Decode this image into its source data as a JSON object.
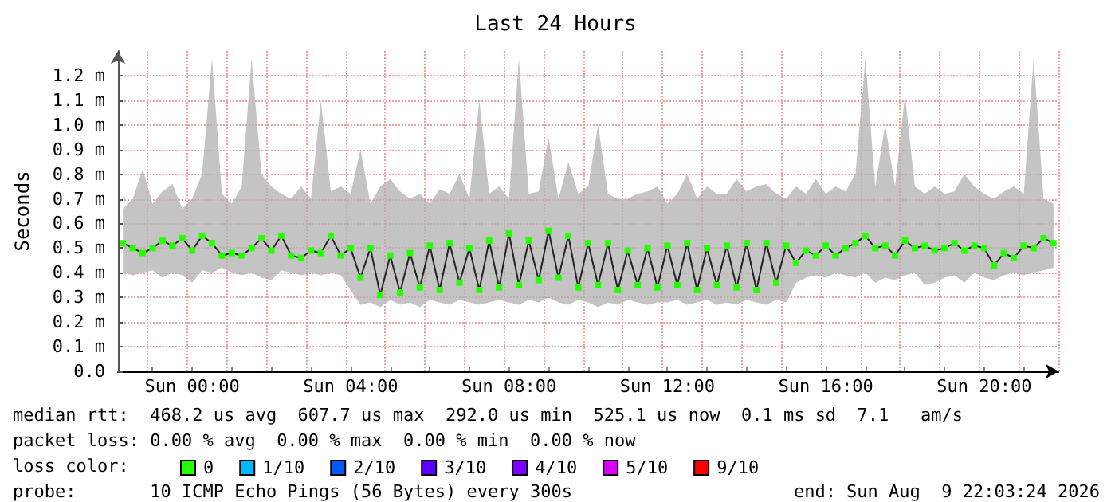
{
  "chart_data": {
    "type": "line",
    "title": "Last 24 Hours",
    "ylabel": "Seconds",
    "legend_title": "loss color:",
    "grid": true,
    "legend": "bottom left",
    "marker": "square",
    "categories": [
      null,
      null,
      null,
      null,
      null,
      null,
      null,
      "Sun 00:00",
      null,
      null,
      null,
      null,
      null,
      null,
      null,
      null,
      null,
      null,
      null,
      null,
      null,
      null,
      null,
      "Sun 04:00",
      null,
      null,
      null,
      null,
      null,
      null,
      null,
      null,
      null,
      null,
      null,
      null,
      null,
      null,
      null,
      "Sun 08:00",
      null,
      null,
      null,
      null,
      null,
      null,
      null,
      null,
      null,
      null,
      null,
      null,
      null,
      null,
      null,
      "Sun 12:00",
      null,
      null,
      null,
      null,
      null,
      null,
      null,
      null,
      null,
      null,
      null,
      null,
      null,
      null,
      null,
      "Sun 16:00",
      null,
      null,
      null,
      null,
      null,
      null,
      null,
      null,
      null,
      null,
      null,
      null,
      null,
      null,
      null,
      "Sun 20:00",
      null,
      null,
      null,
      null,
      null,
      null,
      null
    ],
    "ylim": [
      0,
      1.3
    ],
    "yticks": [
      {
        "value": 0,
        "label": "0.0"
      },
      {
        "value": 0.1,
        "label": "0.1 m"
      },
      {
        "value": 0.2,
        "label": "0.2 m"
      },
      {
        "value": 0.3,
        "label": "0.3 m"
      },
      {
        "value": 0.4,
        "label": "0.4 m"
      },
      {
        "value": 0.5,
        "label": "0.5 m"
      },
      {
        "value": 0.6,
        "label": "0.6 m"
      },
      {
        "value": 0.7,
        "label": "0.7 m"
      },
      {
        "value": 0.8,
        "label": "0.8 m"
      },
      {
        "value": 0.9,
        "label": "0.9 m"
      },
      {
        "value": 1.0,
        "label": "1.0 m"
      },
      {
        "value": 1.1,
        "label": "1.1 m"
      },
      {
        "value": 1.2,
        "label": "1.2 m"
      }
    ],
    "series": [
      {
        "name": "0",
        "color": "#26ff00",
        "values": [
          0.52,
          0.5,
          0.48,
          0.5,
          0.53,
          0.51,
          0.54,
          0.49,
          0.55,
          0.52,
          0.47,
          0.48,
          0.47,
          0.5,
          0.54,
          0.49,
          0.55,
          0.47,
          0.46,
          0.49,
          0.48,
          0.55,
          0.47,
          0.5,
          0.38,
          0.5,
          0.31,
          0.47,
          0.32,
          0.48,
          0.34,
          0.51,
          0.33,
          0.52,
          0.36,
          0.5,
          0.33,
          0.53,
          0.34,
          0.56,
          0.35,
          0.53,
          0.37,
          0.57,
          0.38,
          0.55,
          0.34,
          0.52,
          0.35,
          0.52,
          0.33,
          0.49,
          0.35,
          0.5,
          0.34,
          0.51,
          0.35,
          0.52,
          0.33,
          0.5,
          0.35,
          0.51,
          0.34,
          0.52,
          0.33,
          0.52,
          0.36,
          0.51,
          0.44,
          0.49,
          0.47,
          0.51,
          0.47,
          0.5,
          0.52,
          0.55,
          0.5,
          0.51,
          0.47,
          0.53,
          0.5,
          0.51,
          0.49,
          0.5,
          0.52,
          0.49,
          0.51,
          0.5,
          0.43,
          0.48,
          0.46,
          0.51,
          0.5,
          0.54,
          0.52
        ],
        "upper": [
          0.66,
          0.7,
          0.82,
          0.68,
          0.73,
          0.76,
          0.66,
          0.7,
          0.8,
          1.27,
          0.72,
          0.68,
          0.75,
          1.27,
          0.8,
          0.75,
          0.72,
          0.7,
          0.75,
          0.7,
          1.1,
          0.73,
          0.75,
          0.72,
          0.9,
          0.68,
          0.75,
          0.78,
          0.73,
          0.7,
          0.72,
          0.68,
          0.74,
          0.72,
          0.8,
          0.7,
          1.1,
          0.72,
          0.75,
          0.7,
          1.27,
          0.72,
          0.73,
          0.95,
          0.7,
          0.85,
          0.72,
          0.75,
          1.0,
          0.72,
          0.7,
          0.7,
          0.72,
          0.73,
          0.75,
          0.68,
          0.72,
          0.8,
          0.7,
          0.75,
          0.72,
          0.72,
          0.78,
          0.73,
          0.75,
          0.76,
          0.72,
          0.7,
          0.75,
          0.72,
          0.78,
          0.72,
          0.75,
          0.73,
          0.8,
          1.27,
          0.75,
          1.0,
          0.75,
          1.12,
          0.75,
          0.72,
          0.75,
          0.72,
          0.73,
          0.8,
          0.75,
          0.72,
          0.7,
          0.73,
          0.75,
          0.72,
          1.27,
          0.7,
          0.68
        ],
        "lower": [
          0.4,
          0.39,
          0.4,
          0.41,
          0.38,
          0.4,
          0.39,
          0.36,
          0.41,
          0.4,
          0.42,
          0.4,
          0.39,
          0.4,
          0.38,
          0.37,
          0.41,
          0.4,
          0.39,
          0.4,
          0.39,
          0.4,
          0.39,
          0.33,
          0.27,
          0.28,
          0.26,
          0.29,
          0.27,
          0.28,
          0.26,
          0.29,
          0.28,
          0.27,
          0.29,
          0.28,
          0.27,
          0.28,
          0.29,
          0.28,
          0.27,
          0.29,
          0.28,
          0.3,
          0.28,
          0.27,
          0.29,
          0.28,
          0.26,
          0.28,
          0.27,
          0.29,
          0.28,
          0.27,
          0.28,
          0.28,
          0.29,
          0.27,
          0.28,
          0.29,
          0.27,
          0.28,
          0.27,
          0.29,
          0.28,
          0.27,
          0.29,
          0.28,
          0.36,
          0.38,
          0.39,
          0.38,
          0.4,
          0.39,
          0.38,
          0.4,
          0.36,
          0.38,
          0.37,
          0.39,
          0.4,
          0.35,
          0.36,
          0.38,
          0.39,
          0.36,
          0.4,
          0.38,
          0.37,
          0.39,
          0.4,
          0.39,
          0.4,
          0.41,
          0.42
        ]
      },
      {
        "name": "1/10",
        "color": "#00b8ff",
        "values": [
          null,
          null,
          null,
          null,
          null,
          null,
          null,
          null,
          null,
          null,
          null,
          null,
          null,
          null,
          null,
          null,
          null,
          null,
          null,
          null,
          null,
          null,
          null,
          null,
          null,
          null,
          null,
          null,
          null,
          null,
          null,
          null,
          null,
          null,
          null,
          null,
          null,
          null,
          null,
          null,
          null,
          null,
          null,
          null,
          null,
          null,
          null,
          null,
          null,
          null,
          null,
          null,
          null,
          null,
          null,
          null,
          null,
          null,
          null,
          null,
          null,
          null,
          null,
          null,
          null,
          null,
          null,
          null,
          null,
          null,
          null,
          null,
          null,
          null,
          null,
          null,
          null,
          null,
          null,
          null,
          null,
          null,
          null,
          null,
          null,
          null,
          null,
          null,
          null,
          null,
          null,
          null,
          null,
          null,
          null
        ]
      },
      {
        "name": "2/10",
        "color": "#0059ff",
        "values": [
          null,
          null,
          null,
          null,
          null,
          null,
          null,
          null,
          null,
          null,
          null,
          null,
          null,
          null,
          null,
          null,
          null,
          null,
          null,
          null,
          null,
          null,
          null,
          null,
          null,
          null,
          null,
          null,
          null,
          null,
          null,
          null,
          null,
          null,
          null,
          null,
          null,
          null,
          null,
          null,
          null,
          null,
          null,
          null,
          null,
          null,
          null,
          null,
          null,
          null,
          null,
          null,
          null,
          null,
          null,
          null,
          null,
          null,
          null,
          null,
          null,
          null,
          null,
          null,
          null,
          null,
          null,
          null,
          null,
          null,
          null,
          null,
          null,
          null,
          null,
          null,
          null,
          null,
          null,
          null,
          null,
          null,
          null,
          null,
          null,
          null,
          null,
          null,
          null,
          null,
          null,
          null,
          null,
          null,
          null
        ]
      },
      {
        "name": "3/10",
        "color": "#5e00ff",
        "values": [
          null,
          null,
          null,
          null,
          null,
          null,
          null,
          null,
          null,
          null,
          null,
          null,
          null,
          null,
          null,
          null,
          null,
          null,
          null,
          null,
          null,
          null,
          null,
          null,
          null,
          null,
          null,
          null,
          null,
          null,
          null,
          null,
          null,
          null,
          null,
          null,
          null,
          null,
          null,
          null,
          null,
          null,
          null,
          null,
          null,
          null,
          null,
          null,
          null,
          null,
          null,
          null,
          null,
          null,
          null,
          null,
          null,
          null,
          null,
          null,
          null,
          null,
          null,
          null,
          null,
          null,
          null,
          null,
          null,
          null,
          null,
          null,
          null,
          null,
          null,
          null,
          null,
          null,
          null,
          null,
          null,
          null,
          null,
          null,
          null,
          null,
          null,
          null,
          null,
          null,
          null,
          null,
          null,
          null,
          null
        ]
      },
      {
        "name": "4/10",
        "color": "#7e00ff",
        "values": [
          null,
          null,
          null,
          null,
          null,
          null,
          null,
          null,
          null,
          null,
          null,
          null,
          null,
          null,
          null,
          null,
          null,
          null,
          null,
          null,
          null,
          null,
          null,
          null,
          null,
          null,
          null,
          null,
          null,
          null,
          null,
          null,
          null,
          null,
          null,
          null,
          null,
          null,
          null,
          null,
          null,
          null,
          null,
          null,
          null,
          null,
          null,
          null,
          null,
          null,
          null,
          null,
          null,
          null,
          null,
          null,
          null,
          null,
          null,
          null,
          null,
          null,
          null,
          null,
          null,
          null,
          null,
          null,
          null,
          null,
          null,
          null,
          null,
          null,
          null,
          null,
          null,
          null,
          null,
          null,
          null,
          null,
          null,
          null,
          null,
          null,
          null,
          null,
          null,
          null,
          null,
          null,
          null,
          null,
          null
        ]
      },
      {
        "name": "5/10",
        "color": "#dd00ff",
        "values": [
          null,
          null,
          null,
          null,
          null,
          null,
          null,
          null,
          null,
          null,
          null,
          null,
          null,
          null,
          null,
          null,
          null,
          null,
          null,
          null,
          null,
          null,
          null,
          null,
          null,
          null,
          null,
          null,
          null,
          null,
          null,
          null,
          null,
          null,
          null,
          null,
          null,
          null,
          null,
          null,
          null,
          null,
          null,
          null,
          null,
          null,
          null,
          null,
          null,
          null,
          null,
          null,
          null,
          null,
          null,
          null,
          null,
          null,
          null,
          null,
          null,
          null,
          null,
          null,
          null,
          null,
          null,
          null,
          null,
          null,
          null,
          null,
          null,
          null,
          null,
          null,
          null,
          null,
          null,
          null,
          null,
          null,
          null,
          null,
          null,
          null,
          null,
          null,
          null,
          null,
          null,
          null,
          null,
          null,
          null
        ]
      },
      {
        "name": "9/10",
        "color": "#ff0000",
        "values": [
          null,
          null,
          null,
          null,
          null,
          null,
          null,
          null,
          null,
          null,
          null,
          null,
          null,
          null,
          null,
          null,
          null,
          null,
          null,
          null,
          null,
          null,
          null,
          null,
          null,
          null,
          null,
          null,
          null,
          null,
          null,
          null,
          null,
          null,
          null,
          null,
          null,
          null,
          null,
          null,
          null,
          null,
          null,
          null,
          null,
          null,
          null,
          null,
          null,
          null,
          null,
          null,
          null,
          null,
          null,
          null,
          null,
          null,
          null,
          null,
          null,
          null,
          null,
          null,
          null,
          null,
          null,
          null,
          null,
          null,
          null,
          null,
          null,
          null,
          null,
          null,
          null,
          null,
          null,
          null,
          null,
          null,
          null,
          null,
          null,
          null,
          null,
          null,
          null,
          null,
          null,
          null,
          null,
          null,
          null
        ]
      }
    ],
    "annotations": [
      "median rtt:  468.2 us avg  607.7 us max  292.0 us min  525.1 us now  0.1 ms sd  7.1   am/s",
      "packet loss: 0.00 % avg  0.00 % max  0.00 % min  0.00 % now",
      "probe:       10 ICMP Echo Pings (56 Bytes) every 300s",
      "end: Sun Aug  9 22:03:24 2026"
    ]
  }
}
